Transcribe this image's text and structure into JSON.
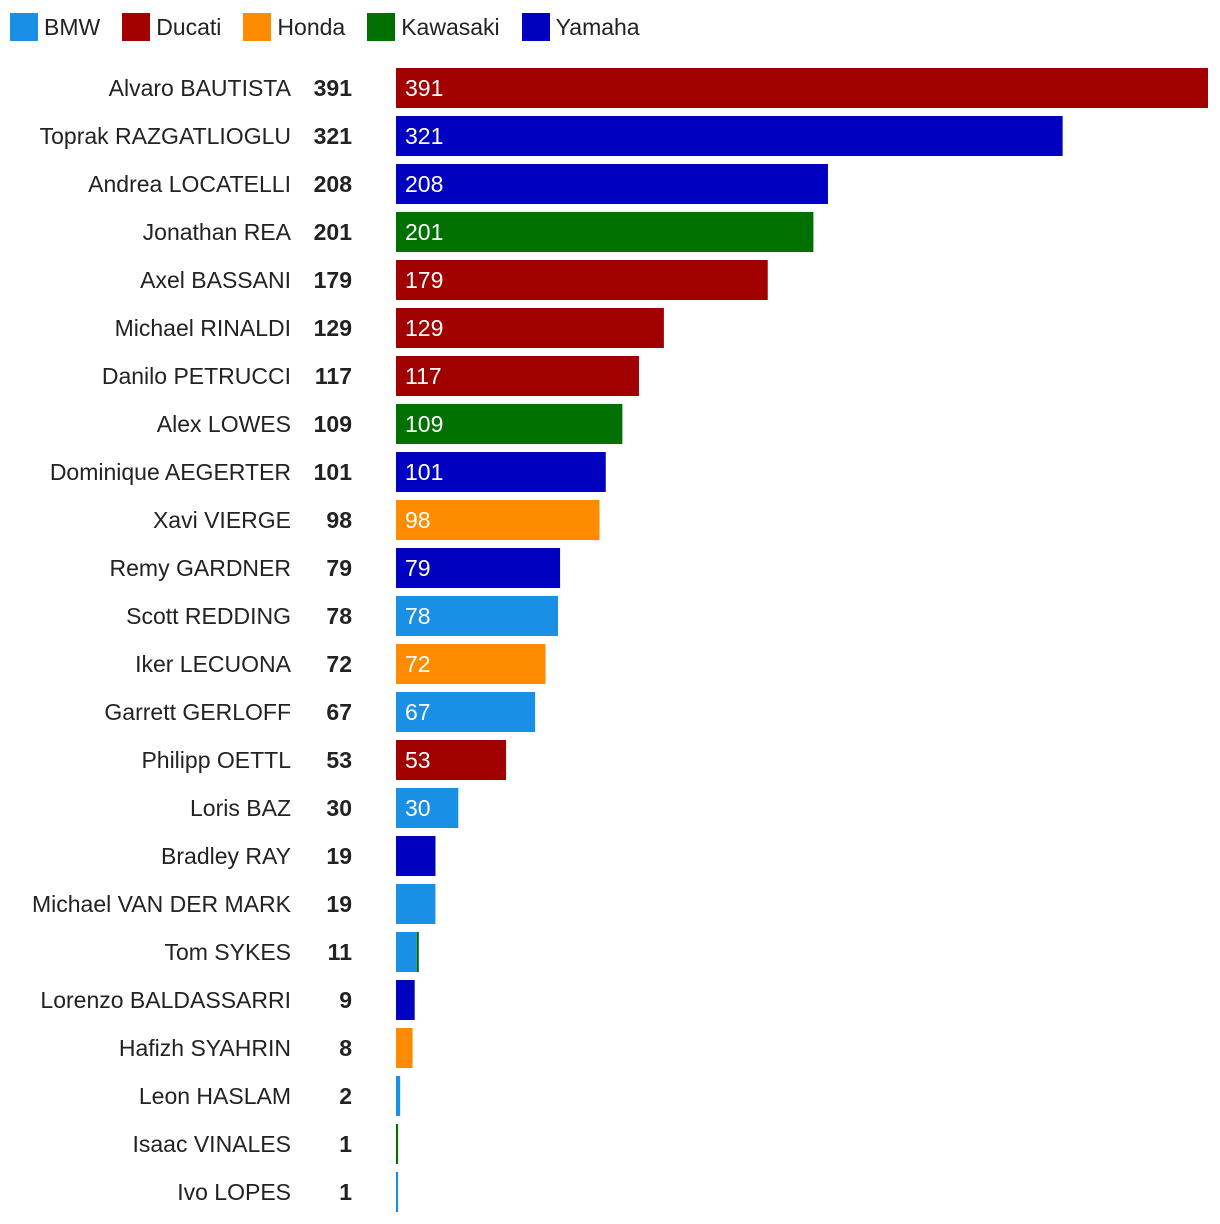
{
  "chart_data": {
    "type": "bar",
    "orientation": "horizontal",
    "title": "",
    "xlabel": "",
    "ylabel": "",
    "xlim": [
      0,
      391
    ],
    "grid": false,
    "legend": {
      "placement": "top-left",
      "entries": [
        {
          "name": "BMW",
          "color": "#1a8fe6"
        },
        {
          "name": "Ducati",
          "color": "#a00000"
        },
        {
          "name": "Honda",
          "color": "#ff8c00"
        },
        {
          "name": "Kawasaki",
          "color": "#007000"
        },
        {
          "name": "Yamaha",
          "color": "#0000c0"
        }
      ]
    },
    "riders": [
      {
        "name": "Alvaro BAUTISTA",
        "total": 391,
        "segments": [
          {
            "brand": "Ducati",
            "value": 391
          }
        ],
        "show_bar_label": true
      },
      {
        "name": "Toprak RAZGATLIOGLU",
        "total": 321,
        "segments": [
          {
            "brand": "Yamaha",
            "value": 321
          }
        ],
        "show_bar_label": true
      },
      {
        "name": "Andrea LOCATELLI",
        "total": 208,
        "segments": [
          {
            "brand": "Yamaha",
            "value": 208
          }
        ],
        "show_bar_label": true
      },
      {
        "name": "Jonathan REA",
        "total": 201,
        "segments": [
          {
            "brand": "Kawasaki",
            "value": 201
          }
        ],
        "show_bar_label": true
      },
      {
        "name": "Axel BASSANI",
        "total": 179,
        "segments": [
          {
            "brand": "Ducati",
            "value": 179
          }
        ],
        "show_bar_label": true
      },
      {
        "name": "Michael RINALDI",
        "total": 129,
        "segments": [
          {
            "brand": "Ducati",
            "value": 129
          }
        ],
        "show_bar_label": true
      },
      {
        "name": "Danilo PETRUCCI",
        "total": 117,
        "segments": [
          {
            "brand": "Ducati",
            "value": 117
          }
        ],
        "show_bar_label": true
      },
      {
        "name": "Alex LOWES",
        "total": 109,
        "segments": [
          {
            "brand": "Kawasaki",
            "value": 109
          }
        ],
        "show_bar_label": true
      },
      {
        "name": "Dominique AEGERTER",
        "total": 101,
        "segments": [
          {
            "brand": "Yamaha",
            "value": 101
          }
        ],
        "show_bar_label": true
      },
      {
        "name": "Xavi VIERGE",
        "total": 98,
        "segments": [
          {
            "brand": "Honda",
            "value": 98
          }
        ],
        "show_bar_label": true
      },
      {
        "name": "Remy GARDNER",
        "total": 79,
        "segments": [
          {
            "brand": "Yamaha",
            "value": 79
          }
        ],
        "show_bar_label": true
      },
      {
        "name": "Scott REDDING",
        "total": 78,
        "segments": [
          {
            "brand": "BMW",
            "value": 78
          }
        ],
        "show_bar_label": true
      },
      {
        "name": "Iker LECUONA",
        "total": 72,
        "segments": [
          {
            "brand": "Honda",
            "value": 72
          }
        ],
        "show_bar_label": true
      },
      {
        "name": "Garrett GERLOFF",
        "total": 67,
        "segments": [
          {
            "brand": "BMW",
            "value": 67
          }
        ],
        "show_bar_label": true
      },
      {
        "name": "Philipp OETTL",
        "total": 53,
        "segments": [
          {
            "brand": "Ducati",
            "value": 53
          }
        ],
        "show_bar_label": true
      },
      {
        "name": "Loris BAZ",
        "total": 30,
        "segments": [
          {
            "brand": "BMW",
            "value": 30
          }
        ],
        "show_bar_label": true
      },
      {
        "name": "Bradley RAY",
        "total": 19,
        "segments": [
          {
            "brand": "Yamaha",
            "value": 19
          }
        ],
        "show_bar_label": false
      },
      {
        "name": "Michael VAN DER MARK",
        "total": 19,
        "segments": [
          {
            "brand": "BMW",
            "value": 19
          }
        ],
        "show_bar_label": false
      },
      {
        "name": "Tom SYKES",
        "total": 11,
        "segments": [
          {
            "brand": "BMW",
            "value": 10
          },
          {
            "brand": "Kawasaki",
            "value": 1
          }
        ],
        "show_bar_label": false
      },
      {
        "name": "Lorenzo BALDASSARRI",
        "total": 9,
        "segments": [
          {
            "brand": "Yamaha",
            "value": 9
          }
        ],
        "show_bar_label": false
      },
      {
        "name": "Hafizh SYAHRIN",
        "total": 8,
        "segments": [
          {
            "brand": "Honda",
            "value": 8
          }
        ],
        "show_bar_label": false
      },
      {
        "name": "Leon HASLAM",
        "total": 2,
        "segments": [
          {
            "brand": "BMW",
            "value": 2
          }
        ],
        "show_bar_label": false
      },
      {
        "name": "Isaac VINALES",
        "total": 1,
        "segments": [
          {
            "brand": "Kawasaki",
            "value": 1
          }
        ],
        "show_bar_label": false
      },
      {
        "name": "Ivo LOPES",
        "total": 1,
        "segments": [
          {
            "brand": "BMW",
            "value": 1
          }
        ],
        "show_bar_label": false
      }
    ]
  }
}
